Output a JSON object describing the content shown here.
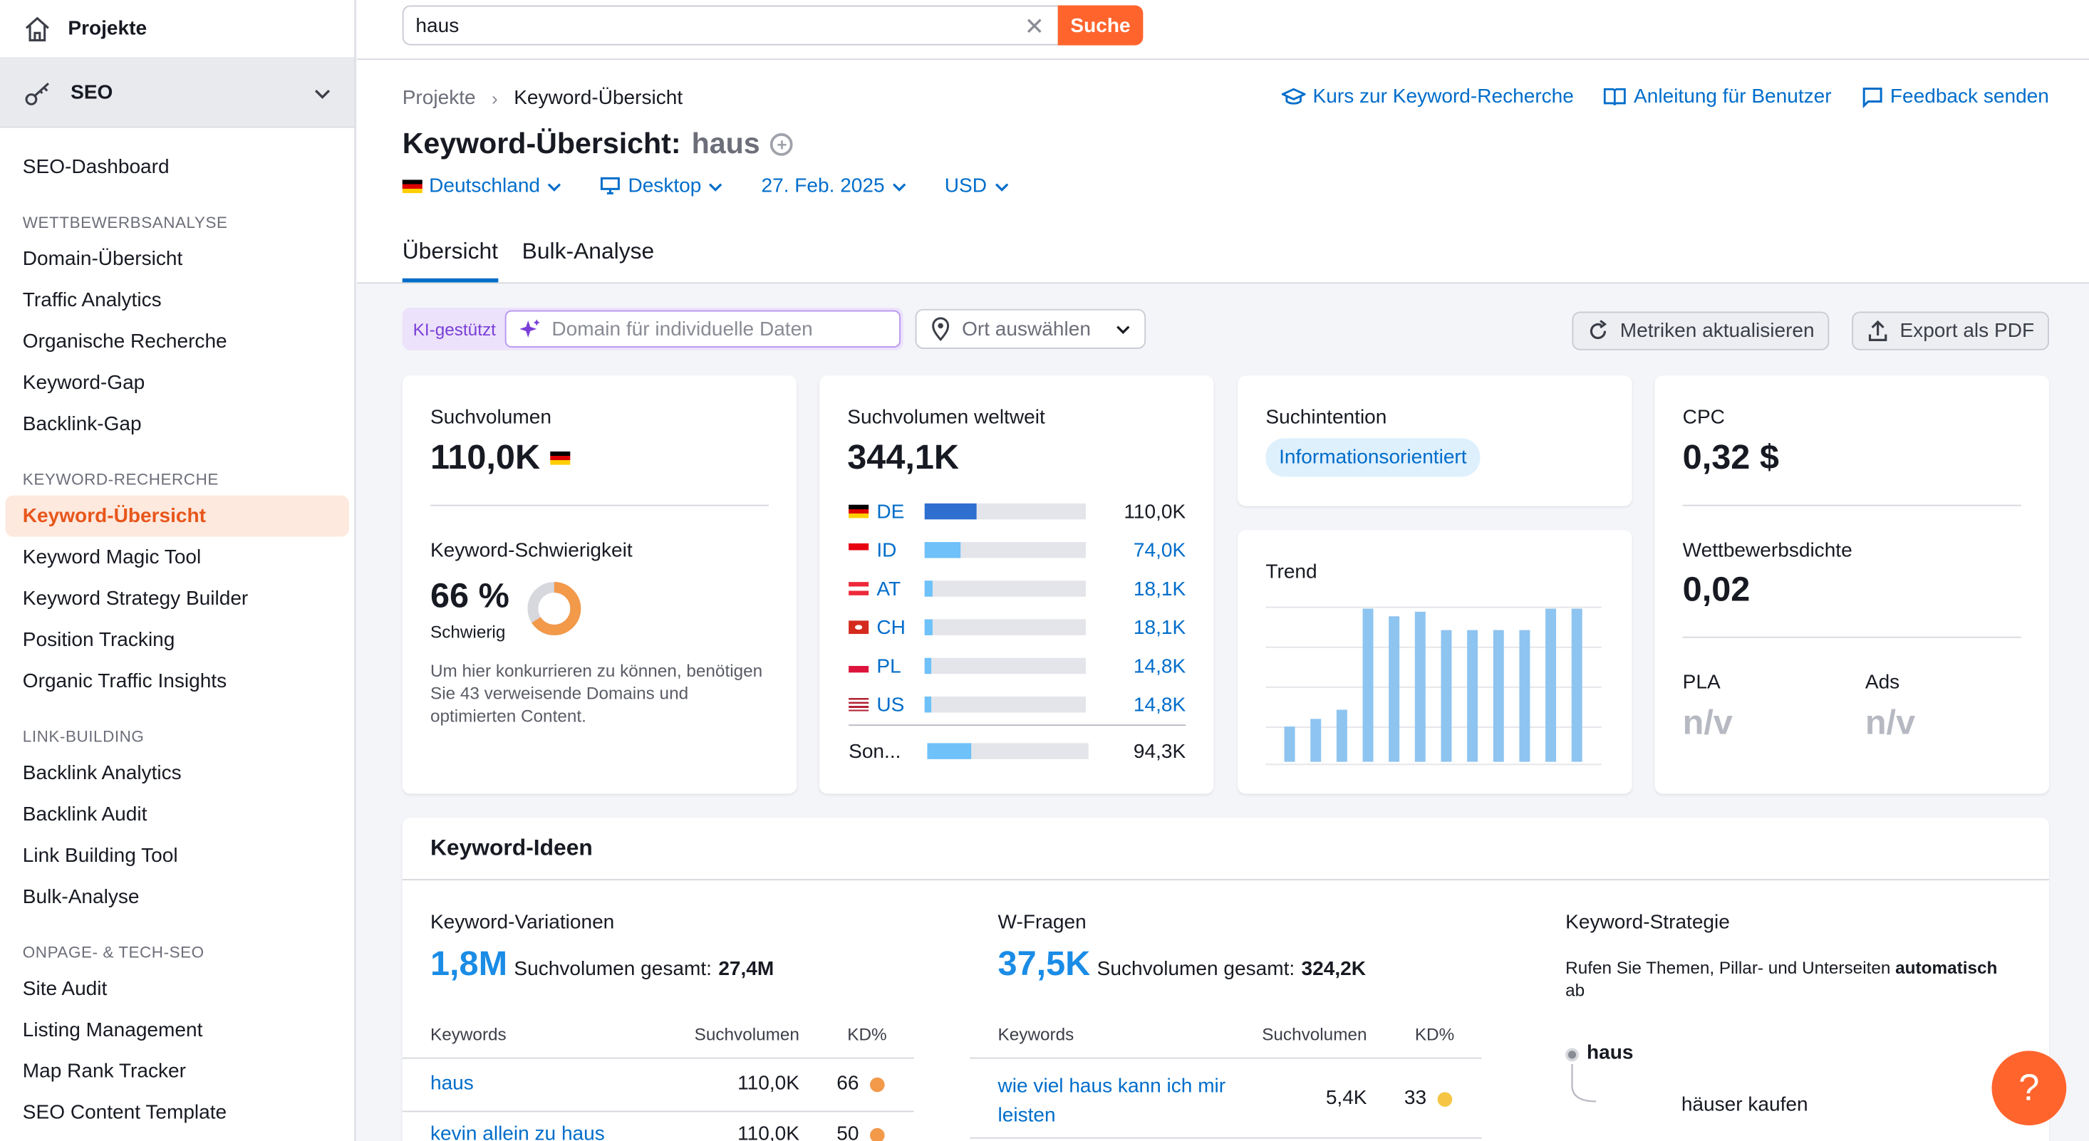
{
  "sidebar": {
    "projects_label": "Projekte",
    "seo_label": "SEO",
    "items": [
      {
        "type": "item",
        "label": "SEO-Dashboard"
      },
      {
        "type": "section",
        "label": "WETTBEWERBSANALYSE"
      },
      {
        "type": "item",
        "label": "Domain-Übersicht"
      },
      {
        "type": "item",
        "label": "Traffic Analytics"
      },
      {
        "type": "item",
        "label": "Organische Recherche"
      },
      {
        "type": "item",
        "label": "Keyword-Gap"
      },
      {
        "type": "item",
        "label": "Backlink-Gap"
      },
      {
        "type": "section",
        "label": "KEYWORD-RECHERCHE"
      },
      {
        "type": "item",
        "label": "Keyword-Übersicht",
        "active": true
      },
      {
        "type": "item",
        "label": "Keyword Magic Tool"
      },
      {
        "type": "item",
        "label": "Keyword Strategy Builder"
      },
      {
        "type": "item",
        "label": "Position Tracking"
      },
      {
        "type": "item",
        "label": "Organic Traffic Insights"
      },
      {
        "type": "section",
        "label": "LINK-BUILDING"
      },
      {
        "type": "item",
        "label": "Backlink Analytics"
      },
      {
        "type": "item",
        "label": "Backlink Audit"
      },
      {
        "type": "item",
        "label": "Link Building Tool"
      },
      {
        "type": "item",
        "label": "Bulk-Analyse"
      },
      {
        "type": "section",
        "label": "ONPAGE- & TECH-SEO"
      },
      {
        "type": "item",
        "label": "Site Audit"
      },
      {
        "type": "item",
        "label": "Listing Management"
      },
      {
        "type": "item",
        "label": "Map Rank Tracker"
      },
      {
        "type": "item",
        "label": "SEO Content Template"
      }
    ]
  },
  "search": {
    "value": "haus",
    "button": "Suche"
  },
  "breadcrumb": {
    "root": "Projekte",
    "current": "Keyword-Übersicht"
  },
  "links": {
    "course": "Kurs zur Keyword-Recherche",
    "manual": "Anleitung für Benutzer",
    "feedback": "Feedback senden"
  },
  "title": {
    "main": "Keyword-Übersicht:",
    "keyword": "haus"
  },
  "filters": {
    "country": "Deutschland",
    "device": "Desktop",
    "date": "27. Feb. 2025",
    "currency": "USD"
  },
  "tabs": {
    "overview": "Übersicht",
    "bulk": "Bulk-Analyse"
  },
  "tools": {
    "ki_badge": "KI-gestützt",
    "domain_placeholder": "Domain für individuelle Daten",
    "location_placeholder": "Ort auswählen",
    "refresh": "Metriken aktualisieren",
    "export": "Export als PDF"
  },
  "volume": {
    "label": "Suchvolumen",
    "value": "110,0K"
  },
  "difficulty": {
    "label": "Keyword-Schwierigkeit",
    "value": "66 %",
    "level": "Schwierig",
    "percent": 66,
    "color": "#f2994a",
    "hint": "Um hier konkurrieren zu können, benötigen Sie 43 verweisende Domains und optimierten Content."
  },
  "global": {
    "label": "Suchvolumen weltweit",
    "value": "344,1K",
    "rows": [
      {
        "code": "DE",
        "value": "110,0K",
        "share": 0.32
      },
      {
        "code": "ID",
        "value": "74,0K",
        "share": 0.22
      },
      {
        "code": "AT",
        "value": "18,1K",
        "share": 0.05
      },
      {
        "code": "CH",
        "value": "18,1K",
        "share": 0.05
      },
      {
        "code": "PL",
        "value": "14,8K",
        "share": 0.04
      },
      {
        "code": "US",
        "value": "14,8K",
        "share": 0.04
      }
    ],
    "other": {
      "code": "Son...",
      "value": "94,3K",
      "share": 0.27
    }
  },
  "intent": {
    "label": "Suchintention",
    "value": "Informationsorientiert"
  },
  "trend": {
    "label": "Trend",
    "values": [
      23,
      28,
      34,
      100,
      95,
      98,
      86,
      86,
      86,
      86,
      100,
      100
    ]
  },
  "cpc": {
    "label": "CPC",
    "value": "0,32 $"
  },
  "competition": {
    "label": "Wettbewerbsdichte",
    "value": "0,02"
  },
  "pla": {
    "label": "PLA",
    "value": "n/v"
  },
  "ads": {
    "label": "Ads",
    "value": "n/v"
  },
  "ideas": {
    "title": "Keyword-Ideen",
    "variations": {
      "title": "Keyword-Variationen",
      "count": "1,8M",
      "total_label": "Suchvolumen gesamt:",
      "total": "27,4M",
      "headers": [
        "Keywords",
        "Suchvolumen",
        "KD%"
      ],
      "rows": [
        {
          "keyword": "haus",
          "volume": "110,0K",
          "kd": "66",
          "color": "#f2994a"
        },
        {
          "keyword": "kevin allein zu haus",
          "volume": "110,0K",
          "kd": "50",
          "color": "#f2994a"
        }
      ]
    },
    "questions": {
      "title": "W-Fragen",
      "count": "37,5K",
      "total_label": "Suchvolumen gesamt:",
      "total": "324,2K",
      "headers": [
        "Keywords",
        "Suchvolumen",
        "KD%"
      ],
      "rows": [
        {
          "keyword": "wie viel haus kann ich mir leisten",
          "volume": "5,4K",
          "kd": "33",
          "color": "#f5c543"
        }
      ]
    },
    "strategy": {
      "title": "Keyword-Strategie",
      "desc": "Rufen Sie Themen, Pillar- und Unterseiten",
      "desc_bold": "automatisch",
      "desc_end": "ab",
      "root": "haus",
      "child": "häuser kaufen"
    }
  },
  "help": "?"
}
